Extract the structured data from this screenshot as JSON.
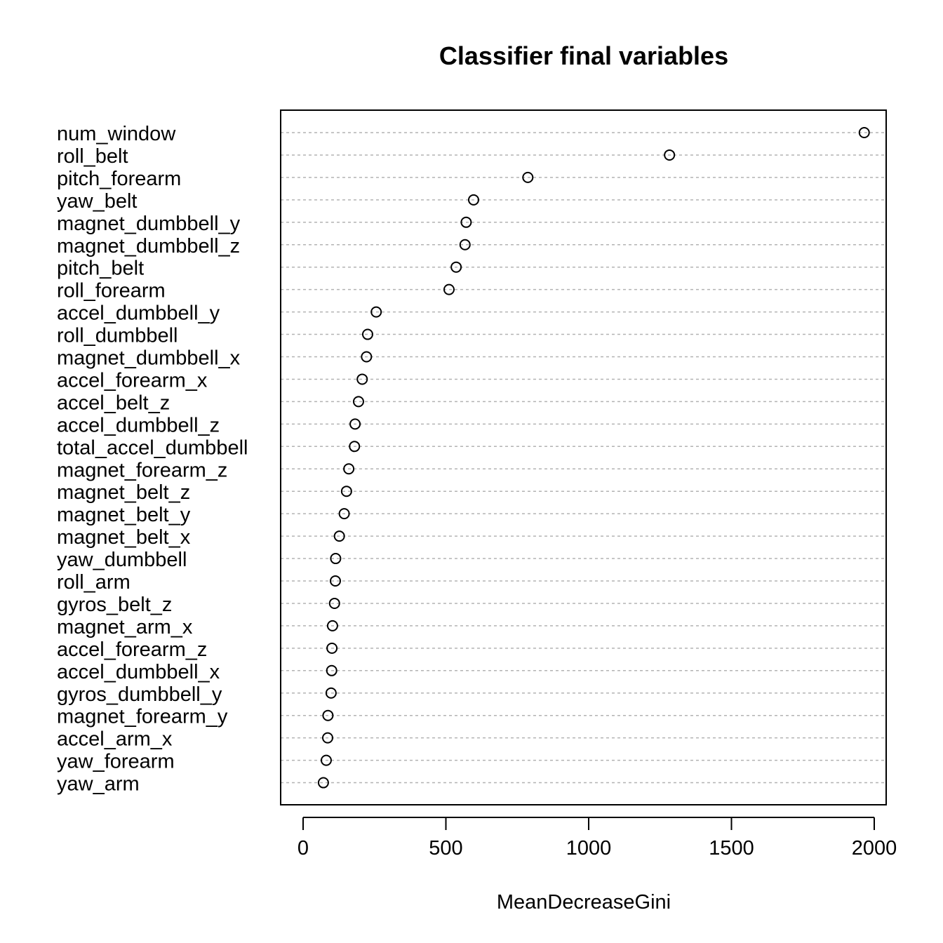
{
  "chart_data": {
    "type": "scatter",
    "title": "Classifier final variables",
    "xlabel": "MeanDecreaseGini",
    "ylabel": "",
    "xlim": [
      -80,
      2040
    ],
    "xticks": [
      0,
      500,
      1000,
      1500,
      2000
    ],
    "xtick_labels": [
      "0",
      "500",
      "1000",
      "1500",
      "2000"
    ],
    "grid": "horizontal dotted",
    "categories": [
      "num_window",
      "roll_belt",
      "pitch_forearm",
      "yaw_belt",
      "magnet_dumbbell_y",
      "magnet_dumbbell_z",
      "pitch_belt",
      "roll_forearm",
      "accel_dumbbell_y",
      "roll_dumbbell",
      "magnet_dumbbell_x",
      "accel_forearm_x",
      "accel_belt_z",
      "accel_dumbbell_z",
      "total_accel_dumbbell",
      "magnet_forearm_z",
      "magnet_belt_z",
      "magnet_belt_y",
      "magnet_belt_x",
      "yaw_dumbbell",
      "roll_arm",
      "gyros_belt_z",
      "magnet_arm_x",
      "accel_forearm_z",
      "accel_dumbbell_x",
      "gyros_dumbbell_y",
      "magnet_forearm_y",
      "accel_arm_x",
      "yaw_forearm",
      "yaw_arm"
    ],
    "values": [
      1965,
      1283,
      787,
      597,
      571,
      567,
      536,
      511,
      256,
      226,
      222,
      207,
      194,
      182,
      180,
      160,
      152,
      144,
      127,
      114,
      113,
      110,
      103,
      101,
      100,
      98,
      87,
      86,
      81,
      71
    ]
  }
}
